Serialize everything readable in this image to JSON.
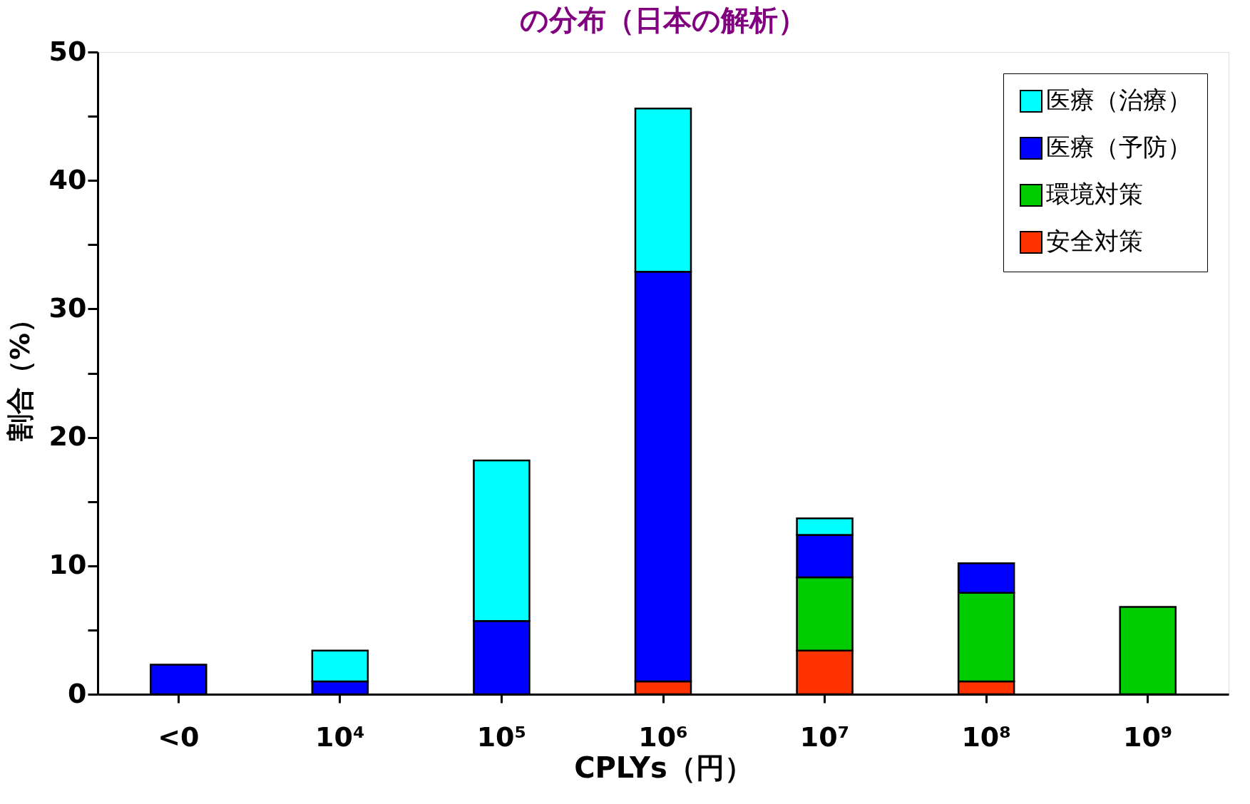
{
  "chart_data": {
    "type": "bar",
    "title": "の分布（日本の解析）",
    "xlabel": "CPLYs（円）",
    "ylabel": "割合（%）",
    "categories": [
      "<0",
      "10⁴",
      "10⁵",
      "10⁶",
      "10⁷",
      "10⁸",
      "10⁹"
    ],
    "stacked": true,
    "series": [
      {
        "name": "安全対策",
        "color": "#ff3300",
        "values": [
          null,
          null,
          null,
          1.0,
          3.4,
          1.0,
          null
        ]
      },
      {
        "name": "環境対策",
        "color": "#00cc00",
        "values": [
          null,
          null,
          null,
          null,
          5.7,
          6.9,
          6.8
        ]
      },
      {
        "name": "医療（予防）",
        "color": "#0000ff",
        "values": [
          2.3,
          1.0,
          5.7,
          31.9,
          3.3,
          2.3,
          null
        ]
      },
      {
        "name": "医療（治療）",
        "color": "#00ffff",
        "values": [
          null,
          2.4,
          12.5,
          12.7,
          1.3,
          null,
          null
        ]
      }
    ],
    "ylim": [
      0,
      50
    ],
    "yticks": [
      0,
      {
        "value": 5,
        "label": null
      },
      10,
      {
        "value": 15,
        "label": null
      },
      20,
      {
        "value": 25,
        "label": null
      },
      30,
      {
        "value": 35,
        "label": null
      },
      40,
      {
        "value": 45,
        "label": null
      },
      50
    ],
    "legend": "top right",
    "grid": false
  }
}
